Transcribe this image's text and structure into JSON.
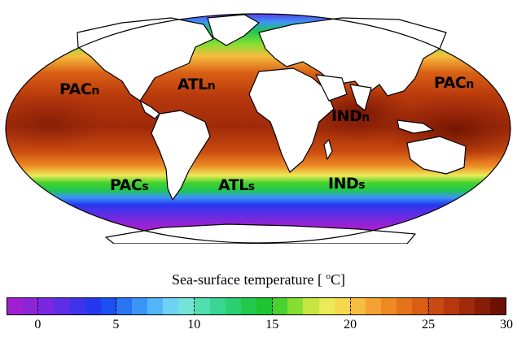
{
  "map": {
    "projection": "Mollweide",
    "regions": [
      {
        "name": "PACn",
        "text_main": "PAC",
        "text_sub": "n"
      },
      {
        "name": "ATLn",
        "text_main": "ATL",
        "text_sub": "n"
      },
      {
        "name": "PACn-east",
        "text_main": "PAC",
        "text_sub": "n"
      },
      {
        "name": "INDn",
        "text_main": "IND",
        "text_sub": "n"
      },
      {
        "name": "PACs",
        "text_main": "PAC",
        "text_sub": "s"
      },
      {
        "name": "ATLs",
        "text_main": "ATL",
        "text_sub": "s"
      },
      {
        "name": "INDs",
        "text_main": "IND",
        "text_sub": "s"
      }
    ],
    "land_color": "#ffffff",
    "coast_color": "#000000"
  },
  "colorbar": {
    "title_main": "Sea-surface temperature [ ",
    "title_sup": "o",
    "title_unit": "C]",
    "min": -2,
    "max": 30,
    "ticks": [
      "0",
      "5",
      "10",
      "15",
      "20",
      "25",
      "30"
    ],
    "tick_values": [
      0,
      5,
      10,
      15,
      20,
      25,
      30
    ],
    "colors": [
      "#a020d0",
      "#8e24d8",
      "#7a28e0",
      "#5f2de6",
      "#3e33ea",
      "#2638ef",
      "#1a4ff3",
      "#2a74f4",
      "#3b95f6",
      "#52b5f7",
      "#6fd2f5",
      "#72e5d8",
      "#52deb0",
      "#38d690",
      "#2bd070",
      "#20c84c",
      "#1cc52f",
      "#47d22d",
      "#86de33",
      "#c6e640",
      "#ecea58",
      "#f6d84f",
      "#f6bd3f",
      "#f3a233",
      "#ee8a24",
      "#e5731a",
      "#d95e14",
      "#c94a10",
      "#b6380c",
      "#a02a09",
      "#861d06",
      "#6c1204"
    ]
  }
}
